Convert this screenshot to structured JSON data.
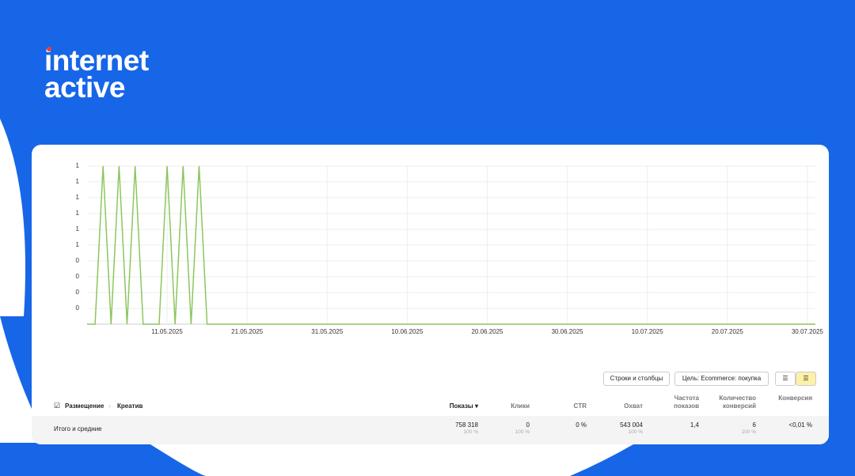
{
  "logo": {
    "line1": "internet",
    "line2": "active"
  },
  "chart_data": {
    "type": "line",
    "x": [
      "01.05.2025",
      "02.05.2025",
      "03.05.2025",
      "04.05.2025",
      "05.05.2025",
      "06.05.2025",
      "07.05.2025",
      "08.05.2025",
      "09.05.2025",
      "10.05.2025",
      "11.05.2025",
      "12.05.2025",
      "13.05.2025",
      "14.05.2025",
      "15.05.2025",
      "16.05.2025",
      "17.05.2025",
      "18.05.2025",
      "19.05.2025",
      "20.05.2025",
      "21.05.2025",
      "22.05.2025",
      "23.05.2025",
      "24.05.2025",
      "25.05.2025",
      "26.05.2025",
      "27.05.2025",
      "28.05.2025",
      "29.05.2025",
      "30.05.2025",
      "31.05.2025",
      "01.06.2025",
      "02.06.2025",
      "03.06.2025",
      "04.06.2025",
      "05.06.2025",
      "06.06.2025",
      "07.06.2025",
      "08.06.2025",
      "09.06.2025",
      "10.06.2025",
      "11.06.2025",
      "12.06.2025",
      "13.06.2025",
      "14.06.2025",
      "15.06.2025",
      "16.06.2025",
      "17.06.2025",
      "18.06.2025",
      "19.06.2025",
      "20.06.2025",
      "21.06.2025",
      "22.06.2025",
      "23.06.2025",
      "24.06.2025",
      "25.06.2025",
      "26.06.2025",
      "27.06.2025",
      "28.06.2025",
      "29.06.2025",
      "30.06.2025",
      "01.07.2025",
      "02.07.2025",
      "03.07.2025",
      "04.07.2025",
      "05.07.2025",
      "06.07.2025",
      "07.07.2025",
      "08.07.2025",
      "09.07.2025",
      "10.07.2025",
      "11.07.2025",
      "12.07.2025",
      "13.07.2025",
      "14.07.2025",
      "15.07.2025",
      "16.07.2025",
      "17.07.2025",
      "18.07.2025",
      "19.07.2025",
      "20.07.2025",
      "21.07.2025",
      "22.07.2025",
      "23.07.2025",
      "24.07.2025",
      "25.07.2025",
      "26.07.2025",
      "27.07.2025",
      "28.07.2025",
      "29.07.2025",
      "30.07.2025",
      "31.07.2025"
    ],
    "series": [
      {
        "color": "#8cc65f",
        "values": [
          0,
          0,
          1,
          0,
          1,
          0,
          1,
          0,
          0,
          0,
          1,
          0,
          1,
          0,
          1,
          0,
          0,
          0,
          0,
          0,
          0,
          0,
          0,
          0,
          0,
          0,
          0,
          0,
          0,
          0,
          0,
          0,
          0,
          0,
          0,
          0,
          0,
          0,
          0,
          0,
          0,
          0,
          0,
          0,
          0,
          0,
          0,
          0,
          0,
          0,
          0,
          0,
          0,
          0,
          0,
          0,
          0,
          0,
          0,
          0,
          0,
          0,
          0,
          0,
          0,
          0,
          0,
          0,
          0,
          0,
          0,
          0,
          0,
          0,
          0,
          0,
          0,
          0,
          0,
          0,
          0,
          0,
          0,
          0,
          0,
          0,
          0,
          0,
          0,
          0,
          0,
          0
        ]
      }
    ],
    "xlim": [
      "01.05.2025",
      "31.07.2025"
    ],
    "xticks": [
      "11.05.2025",
      "21.05.2025",
      "31.05.2025",
      "10.06.2025",
      "20.06.2025",
      "30.06.2025",
      "10.07.2025",
      "20.07.2025",
      "30.07.2025"
    ],
    "ylim": [
      0,
      1
    ],
    "yticks": [
      1,
      {
        "value": 0.9,
        "label": "1"
      },
      {
        "value": 0.8,
        "label": "1"
      },
      {
        "value": 0.7,
        "label": "1"
      },
      {
        "value": 0.6,
        "label": "1"
      },
      {
        "value": 0.5,
        "label": "1"
      },
      {
        "value": 0.4,
        "label": "0"
      },
      {
        "value": 0.3,
        "label": "0"
      },
      {
        "value": 0.2,
        "label": "0"
      },
      {
        "value": 0.1,
        "label": "0"
      }
    ],
    "grid": true
  },
  "controls": {
    "rows_columns": "Строки и столбцы",
    "goal": "Цель: Ecommerce: покупка"
  },
  "table": {
    "groupings": [
      "Размещение",
      "Креатив"
    ],
    "columns": [
      "Показы ▾",
      "Клики",
      "CTR",
      "Охват",
      "Частота показов",
      "Количество конверсий",
      "Конверсия"
    ],
    "total": {
      "label": "Итого и средние",
      "cells": [
        {
          "value": "758 318",
          "share": "100 %"
        },
        {
          "value": "0",
          "share": "100 %"
        },
        {
          "value": "0 %"
        },
        {
          "value": "543 004",
          "share": "100 %"
        },
        {
          "value": "1,4"
        },
        {
          "value": "6",
          "share": "100 %"
        },
        {
          "value": "<0,01 %"
        }
      ]
    }
  }
}
